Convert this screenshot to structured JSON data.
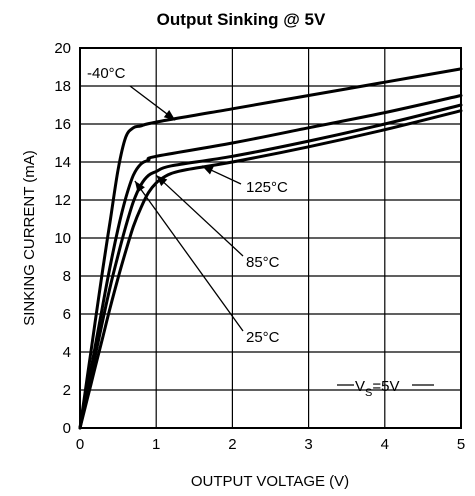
{
  "chart_data": {
    "type": "line",
    "title": "Output Sinking @ 5V",
    "xlabel": "OUTPUT VOLTAGE (V)",
    "ylabel": "SINKING CURRENT (mA)",
    "xlim": [
      0,
      5
    ],
    "ylim": [
      0,
      20
    ],
    "x_ticks": [
      "0",
      "1",
      "2",
      "3",
      "4",
      "5"
    ],
    "y_ticks": [
      "0",
      "2",
      "4",
      "6",
      "8",
      "10",
      "12",
      "14",
      "16",
      "18",
      "20"
    ],
    "grid": true,
    "annotation": {
      "main": "V",
      "subscript": "S",
      "suffix": "=5V"
    },
    "series": [
      {
        "name": "-40°C",
        "x": [
          0,
          0.1,
          0.2,
          0.3,
          0.4,
          0.5,
          0.6,
          0.7,
          0.8,
          1.0,
          2.0,
          3.0,
          4.0,
          5.0
        ],
        "y": [
          0,
          2.8,
          5.6,
          8.4,
          11.0,
          13.6,
          15.3,
          15.8,
          15.9,
          16.1,
          16.8,
          17.5,
          18.2,
          18.9
        ]
      },
      {
        "name": "85°C",
        "x": [
          0,
          0.1,
          0.2,
          0.3,
          0.4,
          0.5,
          0.6,
          0.7,
          0.8,
          0.9,
          1.0,
          2.0,
          3.0,
          4.0,
          5.0
        ],
        "y": [
          0,
          2.1,
          4.3,
          6.5,
          8.6,
          10.5,
          12.1,
          13.3,
          13.9,
          14.1,
          14.3,
          15.0,
          15.8,
          16.6,
          17.5
        ]
      },
      {
        "name": "25°C",
        "x": [
          0,
          0.1,
          0.2,
          0.3,
          0.4,
          0.5,
          0.6,
          0.7,
          0.8,
          0.9,
          1.0,
          1.2,
          2.0,
          3.0,
          4.0,
          5.0
        ],
        "y": [
          0,
          1.9,
          3.8,
          5.7,
          7.5,
          9.1,
          10.6,
          11.9,
          12.8,
          13.3,
          13.5,
          13.8,
          14.3,
          15.1,
          16.0,
          17.0
        ]
      },
      {
        "name": "125°C",
        "x": [
          0,
          0.1,
          0.2,
          0.3,
          0.4,
          0.5,
          0.6,
          0.7,
          0.8,
          0.9,
          1.0,
          1.1,
          1.2,
          1.4,
          2.0,
          3.0,
          4.0,
          5.0
        ],
        "y": [
          0,
          1.6,
          3.2,
          4.8,
          6.4,
          7.9,
          9.3,
          10.6,
          11.6,
          12.4,
          12.9,
          13.2,
          13.4,
          13.6,
          14.0,
          14.8,
          15.7,
          16.7
        ]
      }
    ],
    "labels": [
      {
        "series": "-40°C",
        "text": "-40°C",
        "arrow_x": 1.25,
        "arrow_y": 16.2
      },
      {
        "series": "125°C",
        "text": "125°C",
        "arrow_x": 1.6,
        "arrow_y": 13.8
      },
      {
        "series": "85°C",
        "text": "85°C",
        "arrow_x": 1.0,
        "arrow_y": 13.3
      },
      {
        "series": "25°C",
        "text": "25°C",
        "arrow_x": 0.72,
        "arrow_y": 13.0
      }
    ]
  }
}
